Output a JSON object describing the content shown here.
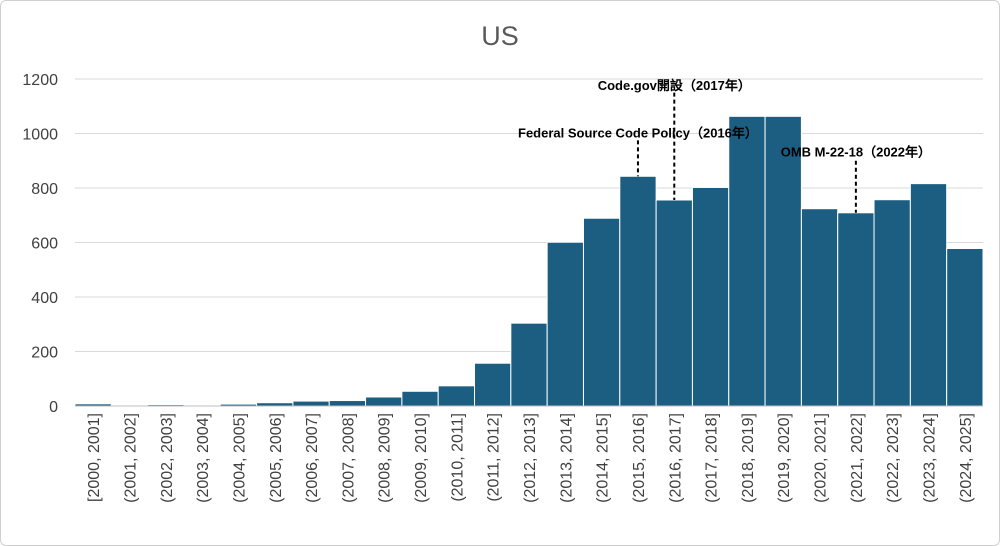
{
  "chart_data": {
    "type": "bar",
    "title": "US",
    "xlabel": "",
    "ylabel": "",
    "ylim": [
      0,
      1200
    ],
    "yticks": [
      0,
      200,
      400,
      600,
      800,
      1000,
      1200
    ],
    "grid": true,
    "legend": "none",
    "bar_color": "#1b5e82",
    "bar_edge_color": "#ffffff",
    "categories": [
      "[2000, 2001]",
      "(2001, 2002]",
      "(2002, 2003]",
      "(2003, 2004]",
      "(2004, 2005]",
      "(2005, 2006]",
      "(2006, 2007]",
      "(2007, 2008]",
      "(2008, 2009]",
      "(2009, 2010]",
      "(2010, 2011]",
      "(2011, 2012]",
      "(2012, 2013]",
      "(2013, 2014]",
      "(2014, 2015]",
      "(2015, 2016]",
      "(2016, 2017]",
      "(2017, 2018]",
      "(2018, 2019]",
      "(2019, 2020]",
      "(2020, 2021]",
      "(2021, 2022]",
      "(2022, 2023]",
      "(2023, 2024]",
      "(2024, 2025]"
    ],
    "values": [
      8,
      1,
      5,
      2,
      7,
      12,
      18,
      20,
      33,
      54,
      74,
      157,
      304,
      601,
      689,
      843,
      756,
      802,
      1063,
      1063,
      724,
      709,
      757,
      816,
      578
    ],
    "annotations": [
      {
        "text": "Federal Source Code Policy（2016年）",
        "category_index": 15,
        "label_value": 985,
        "line_top_value": 975,
        "line_bottom_value": 843
      },
      {
        "text": "Code.gov開設（2017年）",
        "category_index": 16,
        "label_value": 1160,
        "line_top_value": 1150,
        "line_bottom_value": 756
      },
      {
        "text": "OMB M-22-18（2022年）",
        "category_index": 21,
        "label_value": 915,
        "line_top_value": 900,
        "line_bottom_value": 709
      }
    ]
  }
}
